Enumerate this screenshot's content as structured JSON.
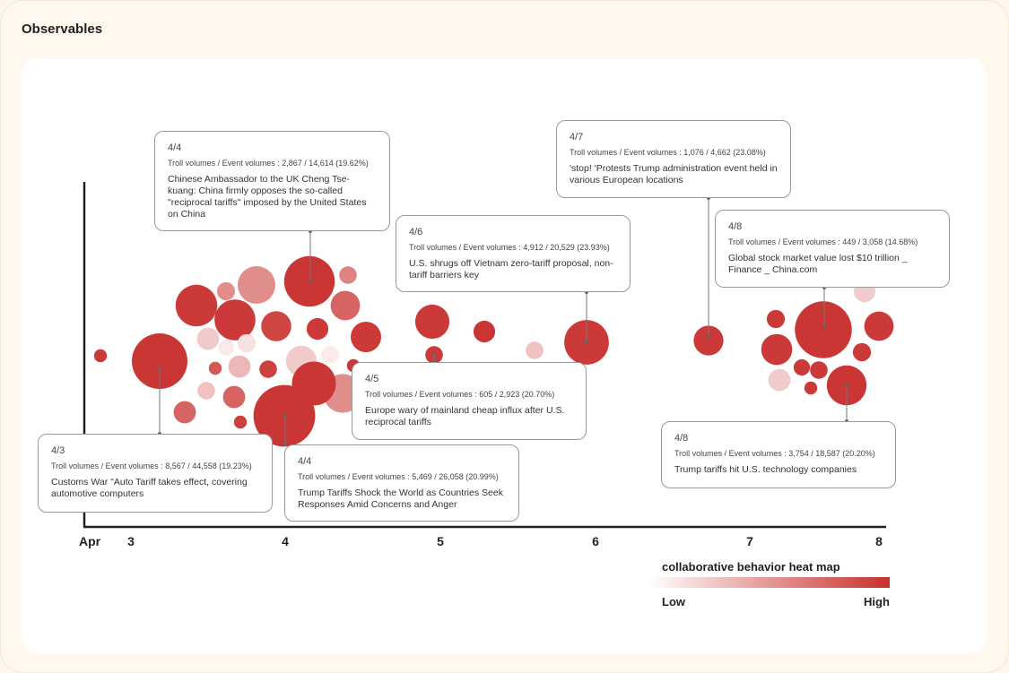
{
  "page": {
    "title": "Observables"
  },
  "chart_data": {
    "type": "scatter",
    "subtype": "bubble",
    "x_axis": {
      "type": "date",
      "start_label": "Apr",
      "tick_labels": [
        "3",
        "4",
        "5",
        "6",
        "7",
        "8"
      ]
    },
    "y_axis": {
      "visible": true,
      "labels": []
    },
    "grid": false,
    "color_scale": {
      "title": "collaborative behavior heat map",
      "low_label": "Low",
      "high_label": "High",
      "low_color": "#ffffff",
      "high_color": "#c8302d"
    },
    "clusters": [
      {
        "date": "4/3",
        "bubbles": [
          {
            "heat": 0.95,
            "size": 0.8
          },
          {
            "heat": 0.97,
            "size": 15
          },
          {
            "heat": 0.75,
            "size": 2.4
          }
        ]
      },
      {
        "date": "4/4",
        "bubbles": [
          {
            "heat": 0.95,
            "size": 8.4
          },
          {
            "heat": 0.55,
            "size": 6.9
          },
          {
            "heat": 0.55,
            "size": 1.6
          },
          {
            "heat": 0.97,
            "size": 12.4
          },
          {
            "heat": 0.6,
            "size": 1.5
          },
          {
            "heat": 0.75,
            "size": 4.2
          },
          {
            "heat": 0.95,
            "size": 8.1
          },
          {
            "heat": 0.9,
            "size": 4.4
          },
          {
            "heat": 0.25,
            "size": 2.4
          },
          {
            "heat": 0.1,
            "size": 1.2
          },
          {
            "heat": 0.15,
            "size": 1.6
          },
          {
            "heat": 0.8,
            "size": 0.8
          },
          {
            "heat": 0.92,
            "size": 1.5
          },
          {
            "heat": 0.35,
            "size": 2.4
          },
          {
            "heat": 0.95,
            "size": 2.3
          },
          {
            "heat": 0.25,
            "size": 4.6
          },
          {
            "heat": 0.1,
            "size": 1.5
          },
          {
            "heat": 0.95,
            "size": 4.5
          },
          {
            "heat": 0.95,
            "size": 0.8
          },
          {
            "heat": 0.3,
            "size": 1.5
          },
          {
            "heat": 0.97,
            "size": 18.5
          },
          {
            "heat": 0.55,
            "size": 7.3
          },
          {
            "heat": 0.75,
            "size": 2.4
          },
          {
            "heat": 0.92,
            "size": 0.8
          },
          {
            "heat": 0.97,
            "size": 9.4
          }
        ]
      },
      {
        "date": "4/5",
        "bubbles": [
          {
            "heat": 0.95,
            "size": 5.7
          },
          {
            "heat": 0.97,
            "size": 2.3
          },
          {
            "heat": 0.95,
            "size": 1.5
          }
        ]
      },
      {
        "date": "4/6",
        "bubbles": [
          {
            "heat": 0.3,
            "size": 1.5
          },
          {
            "heat": 0.95,
            "size": 9.7
          }
        ]
      },
      {
        "date": "4/7",
        "bubbles": [
          {
            "heat": 0.95,
            "size": 4.3
          }
        ]
      },
      {
        "date": "4/8",
        "bubbles": [
          {
            "heat": 0.25,
            "size": 2.3
          },
          {
            "heat": 0.95,
            "size": 1.6
          },
          {
            "heat": 0.97,
            "size": 15.7
          },
          {
            "heat": 0.95,
            "size": 4.2
          },
          {
            "heat": 0.95,
            "size": 4.7
          },
          {
            "heat": 0.25,
            "size": 2.4
          },
          {
            "heat": 0.95,
            "size": 1.6
          },
          {
            "heat": 0.95,
            "size": 1.3
          },
          {
            "heat": 0.95,
            "size": 1.5
          },
          {
            "heat": 0.95,
            "size": 0.8
          },
          {
            "heat": 0.97,
            "size": 7.7
          }
        ]
      }
    ],
    "annotations": [
      {
        "date": "4/3",
        "stats": "Troll volumes / Event volumes : 8,567 / 44,558 (19.23%)",
        "headline": "Customs War \"Auto Tariff takes effect, covering automotive computers"
      },
      {
        "date": "4/4",
        "stats": "Troll volumes / Event volumes : 2,867 / 14,614 (19.62%)",
        "headline": "Chinese Ambassador to the UK Cheng Tse-kuang: China firmly opposes the so-called \"reciprocal tariffs\" imposed by the United States on China"
      },
      {
        "date": "4/4",
        "stats": "Troll volumes / Event volumes : 5,469 / 26,058 (20.99%)",
        "headline": "Trump Tariffs Shock the World as Countries Seek Responses Amid Concerns and Anger"
      },
      {
        "date": "4/5",
        "stats": "Troll volumes / Event volumes : 605 / 2,923 (20.70%)",
        "headline": "Europe wary of mainland cheap influx after U.S. reciprocal tariffs"
      },
      {
        "date": "4/6",
        "stats": "Troll volumes / Event volumes : 4,912 / 20,529 (23.93%)",
        "headline": "U.S. shrugs off Vietnam zero-tariff proposal, non-tariff barriers key"
      },
      {
        "date": "4/7",
        "stats": "Troll volumes / Event volumes : 1,076 / 4,662 (23.08%)",
        "headline": "'stop! 'Protests Trump administration event held in various European locations"
      },
      {
        "date": "4/8",
        "stats": "Troll volumes / Event volumes : 449 / 3,058 (14.68%)",
        "headline": "Global stock market value lost $10 trillion _ Finance _ China.com"
      },
      {
        "date": "4/8",
        "stats": "Troll volumes / Event volumes : 3,754 / 18,587 (20.20%)",
        "headline": "Trump tariffs hit U.S. technology companies"
      }
    ]
  }
}
